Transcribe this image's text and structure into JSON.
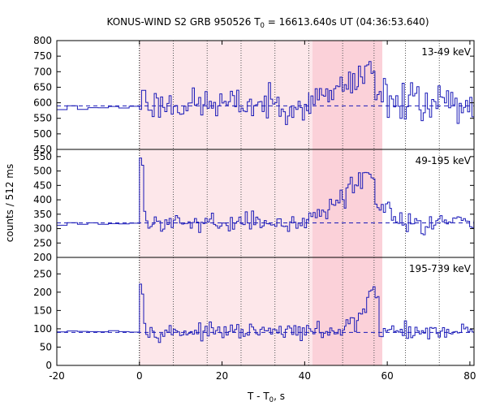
{
  "chart_data": {
    "type": "line",
    "title": {
      "prefix": "KONUS-WIND S2 GRB 950526 T",
      "subscript": "0",
      "suffix": " = 16613.640s UT (04:36:53.640)"
    },
    "xlabel": {
      "prefix": "T - T",
      "subscript": "0",
      "suffix": ", s"
    },
    "ylabel": "counts / 512 ms",
    "xlim": [
      -20,
      81
    ],
    "xticks": [
      -20,
      0,
      20,
      40,
      60,
      80
    ],
    "shading": [
      {
        "range": [
          0,
          58.8
        ],
        "color": "#fde7ea"
      },
      {
        "range": [
          41.9,
          58.8
        ],
        "color": "#fbd1d9"
      }
    ],
    "dotted_lines_x": [
      0,
      8.2,
      16.4,
      24.6,
      32.8,
      41.0,
      49.2,
      56.8,
      64.4,
      72.6
    ],
    "colors": {
      "series": "#1a1ab8",
      "axis": "#000000",
      "dotted": "#555555"
    },
    "panels": [
      {
        "label": "13-49 keV",
        "ylim": [
          450,
          800
        ],
        "yticks": [
          450,
          500,
          550,
          600,
          650,
          700,
          750,
          800
        ],
        "background": 590,
        "segments": [
          {
            "range": [
              -20,
              0
            ],
            "mean": 588,
            "noise": 8,
            "step": 2.5,
            "seed": 11
          },
          {
            "range": [
              0,
              41
            ],
            "mean": 595,
            "noise": 25,
            "step": 0.512,
            "seed": 23
          },
          {
            "range": [
              41,
              46
            ],
            "mean": 615,
            "noise": 22,
            "step": 0.512,
            "seed": 31
          },
          {
            "range": [
              46,
              53
            ],
            "mean": 660,
            "noise": 22,
            "step": 0.512,
            "seed": 37
          },
          {
            "range": [
              53,
              57
            ],
            "mean": 695,
            "noise": 18,
            "step": 0.512,
            "seed": 41
          },
          {
            "range": [
              57,
              60
            ],
            "mean": 645,
            "noise": 22,
            "step": 0.512,
            "seed": 43
          },
          {
            "range": [
              60,
              81
            ],
            "mean": 598,
            "noise": 32,
            "step": 0.512,
            "seed": 47
          }
        ],
        "peaks": [
          {
            "x": 0.8,
            "width": 1.0,
            "value": 640
          },
          {
            "x": 55.0,
            "width": 0.8,
            "value": 722
          }
        ]
      },
      {
        "label": "49-195 keV",
        "ylim": [
          200,
          575
        ],
        "yticks": [
          200,
          250,
          300,
          350,
          400,
          450,
          500,
          550
        ],
        "background": 320,
        "segments": [
          {
            "range": [
              -20,
              0
            ],
            "mean": 320,
            "noise": 4,
            "step": 2.5,
            "seed": 53
          },
          {
            "range": [
              0,
              41
            ],
            "mean": 322,
            "noise": 14,
            "step": 0.512,
            "seed": 59
          },
          {
            "range": [
              41,
              46
            ],
            "mean": 350,
            "noise": 14,
            "step": 0.512,
            "seed": 61
          },
          {
            "range": [
              46,
              50
            ],
            "mean": 410,
            "noise": 22,
            "step": 0.512,
            "seed": 67
          },
          {
            "range": [
              50,
              53
            ],
            "mean": 445,
            "noise": 22,
            "step": 0.512,
            "seed": 71
          },
          {
            "range": [
              53,
              57
            ],
            "mean": 475,
            "noise": 20,
            "step": 0.512,
            "seed": 73
          },
          {
            "range": [
              57,
              61
            ],
            "mean": 380,
            "noise": 20,
            "step": 0.512,
            "seed": 79
          },
          {
            "range": [
              61,
              81
            ],
            "mean": 322,
            "noise": 16,
            "step": 0.512,
            "seed": 83
          }
        ],
        "peaks": [
          {
            "x": 0.1,
            "width": 0.3,
            "value": 545
          },
          {
            "x": 0.4,
            "width": 0.3,
            "value": 520
          },
          {
            "x": 0.7,
            "width": 0.3,
            "value": 420
          },
          {
            "x": 1.0,
            "width": 0.3,
            "value": 360
          },
          {
            "x": 54.5,
            "width": 0.8,
            "value": 495
          }
        ]
      },
      {
        "label": "195-739 keV",
        "ylim": [
          0,
          295
        ],
        "yticks": [
          0,
          50,
          100,
          150,
          200,
          250
        ],
        "background": 90,
        "segments": [
          {
            "range": [
              -20,
              0
            ],
            "mean": 92,
            "noise": 3,
            "step": 2.5,
            "seed": 89
          },
          {
            "range": [
              0,
              50
            ],
            "mean": 92,
            "noise": 10,
            "step": 0.512,
            "seed": 97
          },
          {
            "range": [
              50,
              53
            ],
            "mean": 120,
            "noise": 12,
            "step": 0.512,
            "seed": 101
          },
          {
            "range": [
              53,
              55
            ],
            "mean": 150,
            "noise": 14,
            "step": 0.512,
            "seed": 103
          },
          {
            "range": [
              55,
              58
            ],
            "mean": 190,
            "noise": 14,
            "step": 0.512,
            "seed": 107
          },
          {
            "range": [
              58,
              81
            ],
            "mean": 94,
            "noise": 12,
            "step": 0.512,
            "seed": 109
          }
        ],
        "peaks": [
          {
            "x": 0.1,
            "width": 0.3,
            "value": 222
          },
          {
            "x": 0.4,
            "width": 0.3,
            "value": 195
          },
          {
            "x": 0.7,
            "width": 0.3,
            "value": 150
          },
          {
            "x": 1.0,
            "width": 0.3,
            "value": 115
          },
          {
            "x": 56.5,
            "width": 0.6,
            "value": 215
          }
        ]
      }
    ]
  }
}
